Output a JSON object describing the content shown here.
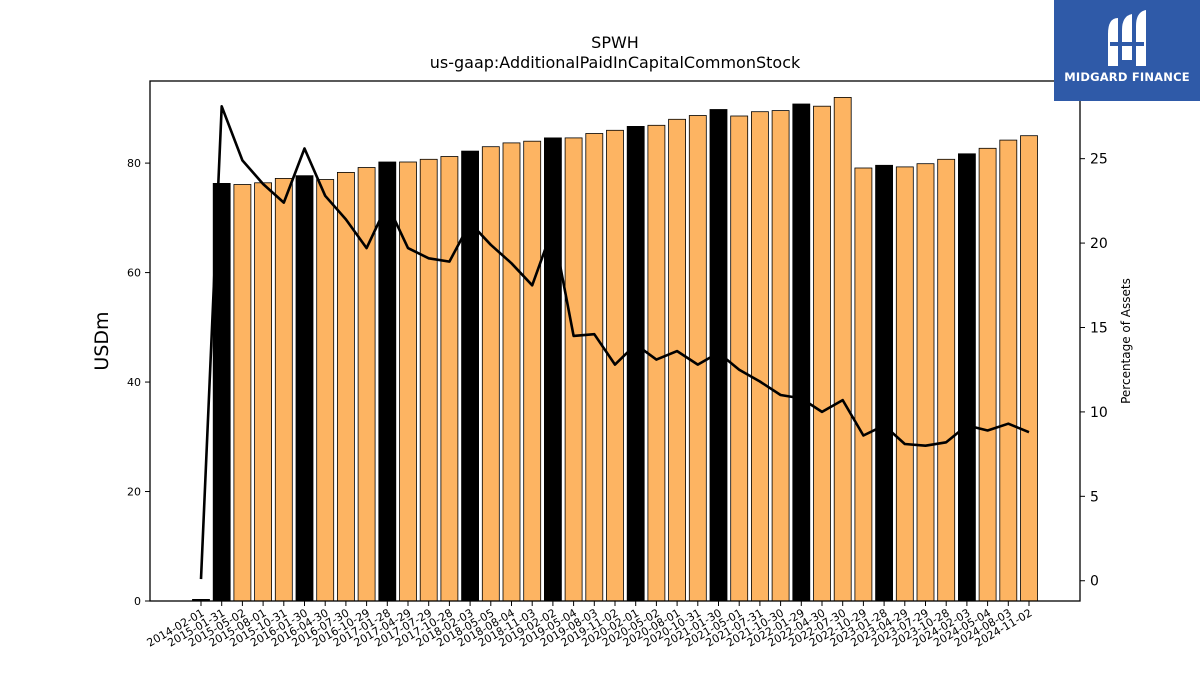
{
  "brand": {
    "name": "MIDGARD FINANCE",
    "mark_icon": "midgard-logo-icon",
    "color": "#2f5aa8"
  },
  "chart_data": {
    "type": "bar+line",
    "title": "SPWH",
    "subtitle": "us-gaap:AdditionalPaidInCapitalCommonStock",
    "ylabel": "USDm",
    "y2label": "Percentage of Assets",
    "ylim": [
      0,
      95
    ],
    "y2lim": [
      -1.2,
      29.6
    ],
    "yticks": [
      0,
      20,
      40,
      60,
      80
    ],
    "y2ticks": [
      0,
      5,
      10,
      15,
      20,
      25
    ],
    "colors": {
      "bar": "#fdb462",
      "highlight": "#000000",
      "line": "#000000"
    },
    "categories": [
      "2014-02-01",
      "2015-01-31",
      "2015-05-02",
      "2015-08-01",
      "2015-10-31",
      "2016-01-30",
      "2016-04-30",
      "2016-07-30",
      "2016-10-29",
      "2017-01-28",
      "2017-04-29",
      "2017-07-29",
      "2017-10-28",
      "2018-02-03",
      "2018-05-05",
      "2018-08-04",
      "2018-11-03",
      "2019-02-02",
      "2019-05-04",
      "2019-08-03",
      "2019-11-02",
      "2020-02-01",
      "2020-05-02",
      "2020-08-01",
      "2020-10-31",
      "2021-01-30",
      "2021-05-01",
      "2021-07-31",
      "2021-10-30",
      "2022-01-29",
      "2022-04-30",
      "2022-07-30",
      "2022-10-29",
      "2023-01-28",
      "2023-04-29",
      "2023-07-29",
      "2023-10-28",
      "2024-02-03",
      "2024-05-04",
      "2024-08-03",
      "2024-11-02"
    ],
    "series": [
      {
        "name": "",
        "kind": "bar",
        "axis": "left",
        "values": [
          0.3,
          76.3,
          76.1,
          76.4,
          77.2,
          77.7,
          77.0,
          78.3,
          79.2,
          80.2,
          80.2,
          80.7,
          81.2,
          82.2,
          83.0,
          83.7,
          84.0,
          84.6,
          84.6,
          85.4,
          86.0,
          86.7,
          86.9,
          88.0,
          88.7,
          89.8,
          88.6,
          89.4,
          89.6,
          90.8,
          90.4,
          92.0,
          79.1,
          79.6,
          79.3,
          79.9,
          80.7,
          81.7,
          82.7,
          84.2,
          85.0
        ],
        "highlight": [
          true,
          true,
          false,
          false,
          false,
          true,
          false,
          false,
          false,
          true,
          false,
          false,
          false,
          true,
          false,
          false,
          false,
          true,
          false,
          false,
          false,
          true,
          false,
          false,
          false,
          true,
          false,
          false,
          false,
          true,
          false,
          false,
          false,
          true,
          false,
          false,
          false,
          true,
          false,
          false,
          false
        ]
      },
      {
        "name": "",
        "kind": "line",
        "axis": "right",
        "values": [
          0.1,
          28.1,
          24.9,
          23.5,
          22.4,
          25.6,
          22.8,
          21.4,
          19.7,
          22.3,
          19.7,
          19.1,
          18.9,
          21.2,
          19.9,
          18.8,
          17.5,
          20.9,
          14.5,
          14.6,
          12.8,
          14.0,
          13.1,
          13.6,
          12.8,
          13.5,
          12.5,
          11.8,
          11.0,
          10.8,
          10.0,
          10.7,
          8.6,
          9.2,
          8.1,
          8.0,
          8.2,
          9.2,
          8.9,
          9.3,
          8.8
        ]
      }
    ]
  }
}
